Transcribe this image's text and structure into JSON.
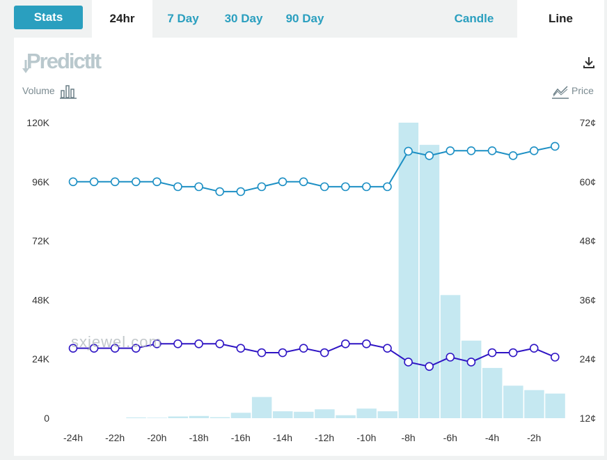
{
  "toolbar": {
    "stats_label": "Stats",
    "ranges": [
      "24hr",
      "7 Day",
      "30 Day",
      "90 Day"
    ],
    "active_range": "24hr",
    "chart_types": [
      "Candle",
      "Line"
    ],
    "active_chart_type": "Line"
  },
  "logo_text": "PredictIt",
  "volume_label": "Volume",
  "price_label": "Price",
  "watermark": "sxjewel.com",
  "colors": {
    "accent": "#2a9fbf",
    "series_a": "#1c8fc4",
    "series_b": "#2e14c4",
    "volume": "#c5e8f1"
  },
  "icons": {
    "download": "download-icon",
    "volume": "bar-chart-icon",
    "price": "line-chart-icon"
  },
  "chart_data": {
    "type": "bar",
    "x_tick_labels": [
      "-24h",
      "-22h",
      "-20h",
      "-18h",
      "-16h",
      "-14h",
      "-12h",
      "-10h",
      "-8h",
      "-6h",
      "-4h",
      "-2h"
    ],
    "left_axis": {
      "label": "Volume",
      "ticks": [
        "0",
        "24K",
        "48K",
        "72K",
        "96K",
        "120K"
      ],
      "range": [
        0,
        120000
      ]
    },
    "right_axis": {
      "label": "Price",
      "ticks": [
        "12¢",
        "24¢",
        "36¢",
        "48¢",
        "60¢",
        "72¢"
      ],
      "range": [
        12,
        72
      ]
    },
    "volume": [
      0,
      0,
      0,
      300,
      200,
      700,
      900,
      400,
      2200,
      8600,
      2800,
      2600,
      3600,
      1200,
      3900,
      2800,
      120000,
      111000,
      50000,
      31500,
      20400,
      13200,
      11400,
      10000
    ],
    "series": [
      {
        "values": [
          60,
          60,
          60,
          60,
          60,
          59,
          59,
          58,
          58,
          59,
          60,
          60,
          59,
          59,
          59,
          59,
          66.2,
          65.3,
          66.3,
          66.3,
          66.3,
          65.3,
          66.3,
          67.2
        ]
      },
      {
        "values": [
          26.2,
          26.2,
          26.2,
          26.2,
          27.1,
          27.1,
          27.1,
          27.1,
          26.2,
          25.3,
          25.3,
          26.2,
          25.3,
          27.1,
          27.1,
          26.2,
          23.4,
          22.5,
          24.4,
          23.4,
          25.3,
          25.3,
          26.2,
          24.4
        ]
      }
    ]
  }
}
